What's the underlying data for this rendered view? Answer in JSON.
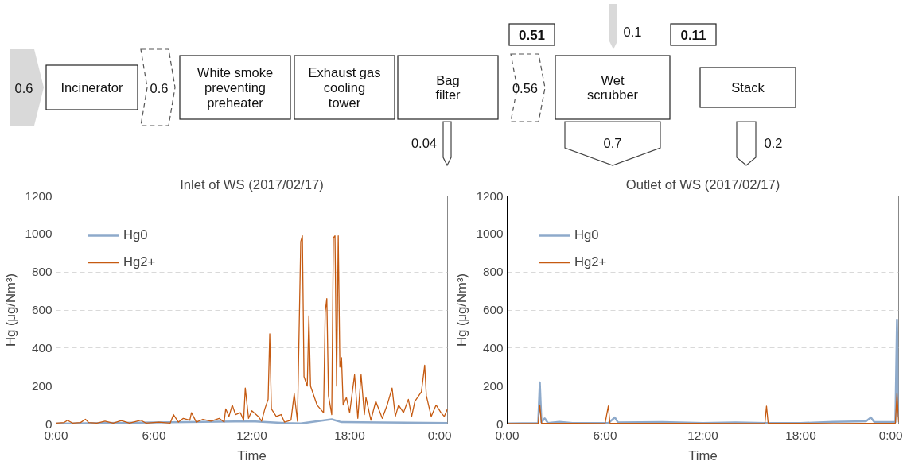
{
  "chart_data": [
    {
      "type": "other",
      "annotations": [
        "0.6",
        "Incinerator",
        "0.6",
        "White smoke preventing preheater",
        "Exhaust gas cooling tower",
        "Bag filter",
        "0.04",
        "0.51",
        "0.56",
        "0.1",
        "Wet scrubber",
        "0.7",
        "0.11",
        "Stack",
        "0.2"
      ]
    },
    {
      "type": "line",
      "title": "Inlet of WS (2017/02/17)",
      "xlabel": "Time",
      "ylabel": "Hg (μg/Nm³)",
      "xlim": [
        0,
        24
      ],
      "ylim": [
        0,
        1200
      ],
      "xticks": [
        {
          "value": 0,
          "label": "0:00"
        },
        {
          "value": 6,
          "label": "6:00"
        },
        {
          "value": 12,
          "label": "12:00"
        },
        {
          "value": 18,
          "label": "18:00"
        },
        {
          "value": 24,
          "label": "0:00"
        }
      ],
      "yticks": [
        0,
        200,
        400,
        600,
        800,
        1000,
        1200
      ],
      "grid": "y",
      "legend": "top left",
      "series": [
        {
          "name": "Hg0",
          "color": "#8eaacb",
          "x": [
            0,
            8,
            12,
            14,
            15,
            16.9,
            17.5,
            20,
            24
          ],
          "values": [
            2,
            10,
            15,
            5,
            3,
            25,
            10,
            8,
            5
          ]
        },
        {
          "name": "Hg2+",
          "color": "#c55a11",
          "x": [
            0,
            0.5,
            0.7,
            1,
            1.5,
            1.8,
            2,
            2.5,
            3,
            3.5,
            4,
            4.5,
            5.2,
            5.5,
            6.3,
            7,
            7.2,
            7.5,
            7.8,
            8.2,
            8.3,
            8.6,
            9,
            9.5,
            10,
            10.3,
            10.4,
            10.6,
            10.8,
            11,
            11.3,
            11.5,
            11.6,
            11.8,
            12,
            12.4,
            12.6,
            12.8,
            13,
            13.1,
            13.2,
            13.5,
            13.8,
            14,
            14.4,
            14.6,
            14.8,
            15,
            15.1,
            15.2,
            15.4,
            15.5,
            15.6,
            16,
            16.4,
            16.5,
            16.6,
            16.7,
            16.9,
            17,
            17.1,
            17.2,
            17.3,
            17.4,
            17.5,
            17.6,
            17.8,
            18,
            18.3,
            18.5,
            18.7,
            18.9,
            19,
            19.3,
            19.6,
            20,
            20.3,
            20.6,
            20.8,
            21,
            21.3,
            21.6,
            21.8,
            22,
            22.4,
            22.6,
            22.7,
            23,
            23.3,
            23.6,
            23.8,
            24
          ],
          "values": [
            5,
            8,
            20,
            5,
            8,
            25,
            8,
            5,
            15,
            5,
            18,
            5,
            20,
            5,
            10,
            5,
            50,
            10,
            30,
            20,
            60,
            10,
            25,
            15,
            30,
            10,
            80,
            40,
            100,
            50,
            60,
            20,
            190,
            30,
            70,
            40,
            15,
            80,
            130,
            475,
            80,
            40,
            50,
            10,
            20,
            160,
            15,
            960,
            990,
            250,
            200,
            570,
            200,
            100,
            60,
            590,
            660,
            150,
            50,
            980,
            990,
            200,
            990,
            300,
            350,
            100,
            140,
            60,
            260,
            30,
            260,
            50,
            140,
            20,
            120,
            30,
            100,
            190,
            40,
            100,
            60,
            130,
            40,
            120,
            170,
            310,
            150,
            40,
            100,
            60,
            40,
            80
          ]
        }
      ]
    },
    {
      "type": "line",
      "title": "Outlet of WS (2017/02/17)",
      "xlabel": "Time",
      "ylabel": "Hg (μg/Nm³)",
      "xlim": [
        0,
        24
      ],
      "ylim": [
        0,
        1200
      ],
      "xticks": [
        {
          "value": 0,
          "label": "0:00"
        },
        {
          "value": 6,
          "label": "6:00"
        },
        {
          "value": 12,
          "label": "12:00"
        },
        {
          "value": 18,
          "label": "18:00"
        },
        {
          "value": 24,
          "label": "0:00"
        }
      ],
      "yticks": [
        0,
        200,
        400,
        600,
        800,
        1000,
        1200
      ],
      "grid": "y",
      "legend": "top left",
      "series": [
        {
          "name": "Hg0",
          "color": "#8eaacb",
          "x": [
            0,
            1.9,
            2,
            2.1,
            2.3,
            2.5,
            3.2,
            4,
            6.2,
            6.6,
            6.8,
            9.5,
            12,
            14,
            15.8,
            18,
            20,
            22,
            22.3,
            22.5,
            23.8,
            23.9,
            24
          ],
          "values": [
            3,
            5,
            220,
            10,
            30,
            5,
            12,
            5,
            5,
            35,
            8,
            10,
            5,
            8,
            5,
            5,
            12,
            15,
            35,
            12,
            10,
            550,
            40
          ]
        },
        {
          "name": "Hg2+",
          "color": "#c55a11",
          "x": [
            0,
            1.9,
            2,
            2.1,
            6,
            6.2,
            6.3,
            15.8,
            15.9,
            16,
            20,
            23.8,
            23.9,
            24
          ],
          "values": [
            3,
            3,
            100,
            5,
            3,
            95,
            5,
            3,
            95,
            5,
            3,
            5,
            160,
            10
          ]
        }
      ]
    }
  ]
}
